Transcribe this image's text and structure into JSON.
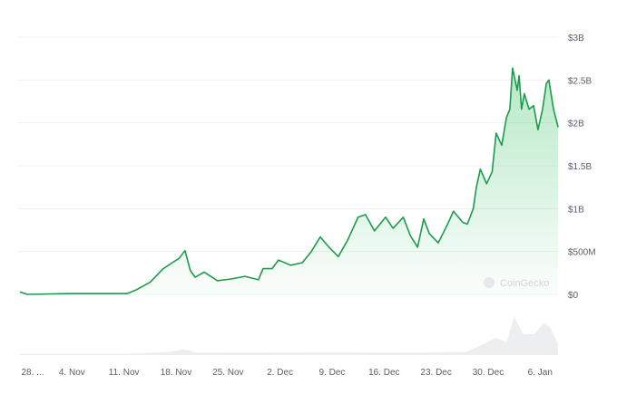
{
  "chart_data": {
    "type": "area",
    "title": "",
    "xlabel": "",
    "ylabel": "",
    "ylim": [
      0,
      3000000000
    ],
    "y_ticks": [
      "$0",
      "$500M",
      "$1B",
      "$1.5B",
      "$2B",
      "$2.5B",
      "$3B"
    ],
    "x_ticks": [
      "28. ...",
      "4. Nov",
      "11. Nov",
      "18. Nov",
      "25. Nov",
      "2. Dec",
      "9. Dec",
      "16. Dec",
      "23. Dec",
      "30. Dec",
      "6. Jan"
    ],
    "x_tick_dates": [
      "10-28",
      "11-04",
      "11-11",
      "11-18",
      "11-25",
      "12-02",
      "12-09",
      "12-16",
      "12-23",
      "12-30",
      "01-06"
    ],
    "grid": true,
    "line_color": "#1e9a4b",
    "fill_color": "#2fbf5f",
    "watermark": "CoinGecko",
    "series": [
      {
        "values_unit": "USD billions",
        "points": [
          [
            "10-28 00",
            0.03
          ],
          [
            "10-29 00",
            0.0
          ],
          [
            "11-04 02",
            0.01
          ],
          [
            "11-11 10",
            0.01
          ],
          [
            "11-12 14",
            0.05
          ],
          [
            "11-14 12",
            0.14
          ],
          [
            "11-16 07",
            0.3
          ],
          [
            "11-17 12",
            0.37
          ],
          [
            "11-18 10",
            0.42
          ],
          [
            "11-19 05",
            0.51
          ],
          [
            "11-19 22",
            0.28
          ],
          [
            "11-20 14",
            0.2
          ],
          [
            "11-21 19",
            0.26
          ],
          [
            "11-23 14",
            0.16
          ],
          [
            "11-25 10",
            0.18
          ],
          [
            "11-27 07",
            0.21
          ],
          [
            "11-29 02",
            0.17
          ],
          [
            "11-29 17",
            0.3
          ],
          [
            "11-30 22",
            0.3
          ],
          [
            "12-01 19",
            0.4
          ],
          [
            "12-03 10",
            0.34
          ],
          [
            "12-05 00",
            0.37
          ],
          [
            "12-06 05",
            0.5
          ],
          [
            "12-07 10",
            0.67
          ],
          [
            "12-08 14",
            0.55
          ],
          [
            "12-09 20",
            0.44
          ],
          [
            "12-11 02",
            0.63
          ],
          [
            "12-12 12",
            0.9
          ],
          [
            "12-13 12",
            0.93
          ],
          [
            "12-14 17",
            0.74
          ],
          [
            "12-16 05",
            0.9
          ],
          [
            "12-17 05",
            0.77
          ],
          [
            "12-18 14",
            0.9
          ],
          [
            "12-19 12",
            0.69
          ],
          [
            "12-20 12",
            0.55
          ],
          [
            "12-21 08",
            0.88
          ],
          [
            "12-22 02",
            0.71
          ],
          [
            "12-23 07",
            0.6
          ],
          [
            "12-24 12",
            0.81
          ],
          [
            "12-25 08",
            0.97
          ],
          [
            "12-26 14",
            0.84
          ],
          [
            "12-27 05",
            0.82
          ],
          [
            "12-28 00",
            1.0
          ],
          [
            "12-28 10",
            1.25
          ],
          [
            "12-28 23",
            1.46
          ],
          [
            "12-29 19",
            1.29
          ],
          [
            "12-30 13",
            1.43
          ],
          [
            "12-31 02",
            1.88
          ],
          [
            "12-31 20",
            1.74
          ],
          [
            "01-01 11",
            2.06
          ],
          [
            "01-01 22",
            2.16
          ],
          [
            "01-02 07",
            2.64
          ],
          [
            "01-02 22",
            2.38
          ],
          [
            "01-03 04",
            2.55
          ],
          [
            "01-03 12",
            2.16
          ],
          [
            "01-03 21",
            2.34
          ],
          [
            "01-04 12",
            2.16
          ],
          [
            "01-05 03",
            2.2
          ],
          [
            "01-05 17",
            1.92
          ],
          [
            "01-06 08",
            2.16
          ],
          [
            "01-06 20",
            2.46
          ],
          [
            "01-07 04",
            2.5
          ],
          [
            "01-07 19",
            2.16
          ],
          [
            "01-08 10",
            1.95
          ]
        ]
      }
    ],
    "volume_relative": [
      [
        "10-28 00",
        0.03
      ],
      [
        "11-11 00",
        0.03
      ],
      [
        "11-17 00",
        0.08
      ],
      [
        "11-19 00",
        0.15
      ],
      [
        "11-21 00",
        0.06
      ],
      [
        "12-09 00",
        0.07
      ],
      [
        "12-20 00",
        0.06
      ],
      [
        "12-27 00",
        0.08
      ],
      [
        "12-29 00",
        0.25
      ],
      [
        "12-31 00",
        0.45
      ],
      [
        "01-01 12",
        0.35
      ],
      [
        "01-02 12",
        1.0
      ],
      [
        "01-03 18",
        0.55
      ],
      [
        "01-05 06",
        0.55
      ],
      [
        "01-06 12",
        0.85
      ],
      [
        "01-07 06",
        0.75
      ],
      [
        "01-08 10",
        0.3
      ]
    ]
  }
}
